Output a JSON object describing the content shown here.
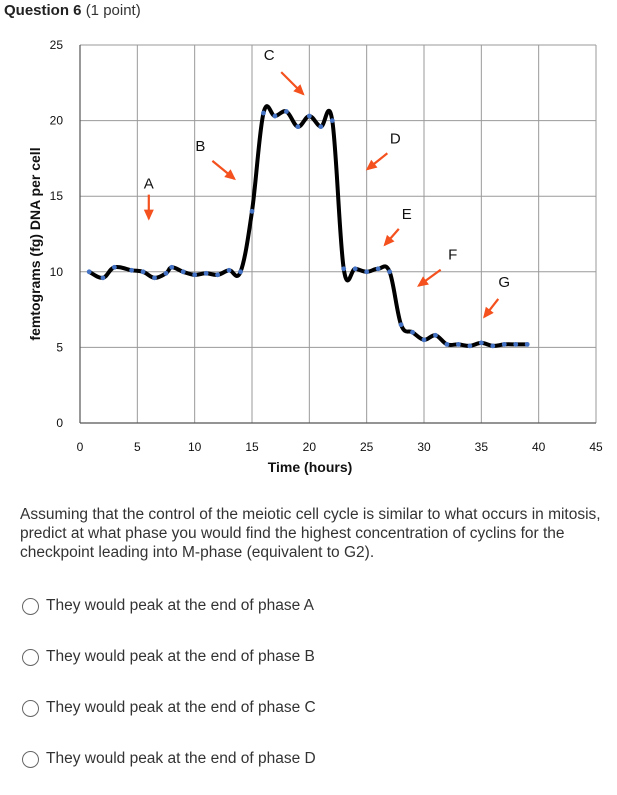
{
  "question": {
    "number": "Question 6",
    "points": "(1 point)"
  },
  "chart_data": {
    "type": "line",
    "xlabel": "Time (hours)",
    "ylabel": "femtograms (fg) DNA per cell",
    "xlim": [
      0,
      45
    ],
    "ylim": [
      0,
      25
    ],
    "xticks": [
      "0",
      "5",
      "10",
      "15",
      "20",
      "25",
      "30",
      "35",
      "40",
      "45"
    ],
    "yticks": [
      "0",
      "5",
      "10",
      "15",
      "20",
      "25"
    ],
    "grid": true,
    "series": [
      {
        "x": [
          0.8,
          2,
          3,
          4.5,
          5.5,
          6.5,
          7.5,
          8,
          9,
          10,
          11,
          12,
          13,
          14,
          15,
          16,
          17,
          18,
          19,
          20,
          21,
          22,
          23,
          24,
          25,
          26,
          27,
          28,
          29,
          30,
          31,
          32,
          33,
          34,
          35,
          36,
          37,
          38,
          39
        ],
        "y": [
          10,
          9.6,
          10.3,
          10.1,
          10,
          9.6,
          9.9,
          10.3,
          10,
          9.8,
          9.9,
          9.8,
          10.1,
          10,
          14,
          20.5,
          20.3,
          20.6,
          19.6,
          20.3,
          19.6,
          20,
          10.2,
          10.2,
          10,
          10.2,
          10,
          6.5,
          6,
          5.5,
          5.8,
          5.2,
          5.2,
          5.1,
          5.3,
          5.1,
          5.2,
          5.2,
          5.2
        ]
      }
    ],
    "annotations": [
      {
        "label": "A",
        "x": 6,
        "y": 15.5
      },
      {
        "label": "B",
        "x": 10.5,
        "y": 18
      },
      {
        "label": "C",
        "x": 16.5,
        "y": 24
      },
      {
        "label": "D",
        "x": 27.5,
        "y": 18.5
      },
      {
        "label": "E",
        "x": 28.5,
        "y": 13.5
      },
      {
        "label": "F",
        "x": 32.5,
        "y": 10.8
      },
      {
        "label": "G",
        "x": 37,
        "y": 9
      }
    ],
    "colors": {
      "line": "#000000",
      "markers": "#4472c4",
      "arrows": "#f4511e"
    }
  },
  "prompt": "Assuming that the control of the meiotic cell cycle is similar to what occurs in mitosis, predict at what phase you would find the highest concentration of cyclins for the checkpoint leading into M-phase (equivalent to G2).",
  "options": [
    "They would peak at the end of phase A",
    "They would peak at the end of phase B",
    "They would peak at the end of phase C",
    "They would peak at the end of phase D"
  ]
}
